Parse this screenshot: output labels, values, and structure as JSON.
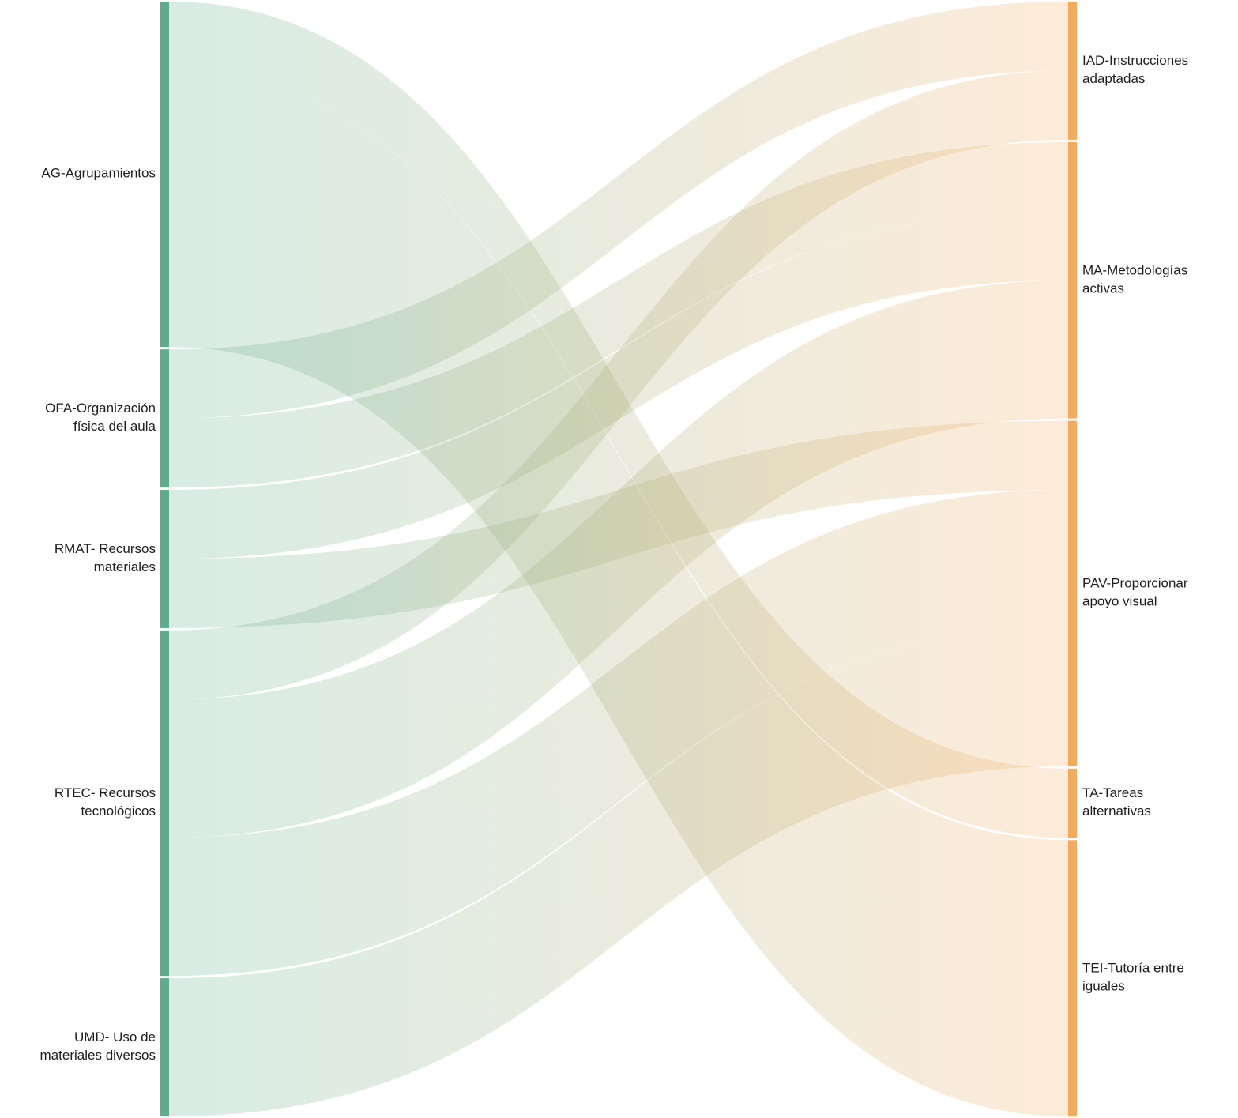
{
  "chart_data": {
    "type": "sankey",
    "nodes": [
      {
        "label": [
          "AG-Agrupamientos"
        ],
        "side": "left",
        "color": "#5aae8d"
      },
      {
        "label": [
          "OFA-Organización",
          "física del aula"
        ],
        "side": "left",
        "color": "#5aae8d"
      },
      {
        "label": [
          "RMAT- Recursos",
          "materiales"
        ],
        "side": "left",
        "color": "#5aae8d"
      },
      {
        "label": [
          "RTEC- Recursos",
          "tecnológicos"
        ],
        "side": "left",
        "color": "#5aae8d"
      },
      {
        "label": [
          "UMD- Uso de",
          "materiales diversos"
        ],
        "side": "left",
        "color": "#5aae8d"
      },
      {
        "label": [
          "IAD-Instrucciones",
          "adaptadas"
        ],
        "side": "right",
        "color": "#f5ab5c"
      },
      {
        "label": [
          "MA-Metodologías",
          "activas"
        ],
        "side": "right",
        "color": "#f5ab5c"
      },
      {
        "label": [
          "PAV-Proporcionar",
          "apoyo visual"
        ],
        "side": "right",
        "color": "#f5ab5c"
      },
      {
        "label": [
          "TA-Tareas",
          "alternativas"
        ],
        "side": "right",
        "color": "#f5ab5c"
      },
      {
        "label": [
          "TEI-Tutoría entre",
          "iguales"
        ],
        "side": "right",
        "color": "#f5ab5c"
      }
    ],
    "links": [
      {
        "source": 0,
        "target": 8,
        "value": 1
      },
      {
        "source": 0,
        "target": 9,
        "value": 4
      },
      {
        "source": 1,
        "target": 5,
        "value": 1
      },
      {
        "source": 1,
        "target": 6,
        "value": 1
      },
      {
        "source": 2,
        "target": 6,
        "value": 1
      },
      {
        "source": 2,
        "target": 7,
        "value": 1
      },
      {
        "source": 3,
        "target": 5,
        "value": 1
      },
      {
        "source": 3,
        "target": 6,
        "value": 2
      },
      {
        "source": 3,
        "target": 7,
        "value": 2
      },
      {
        "source": 4,
        "target": 7,
        "value": 2
      }
    ]
  }
}
